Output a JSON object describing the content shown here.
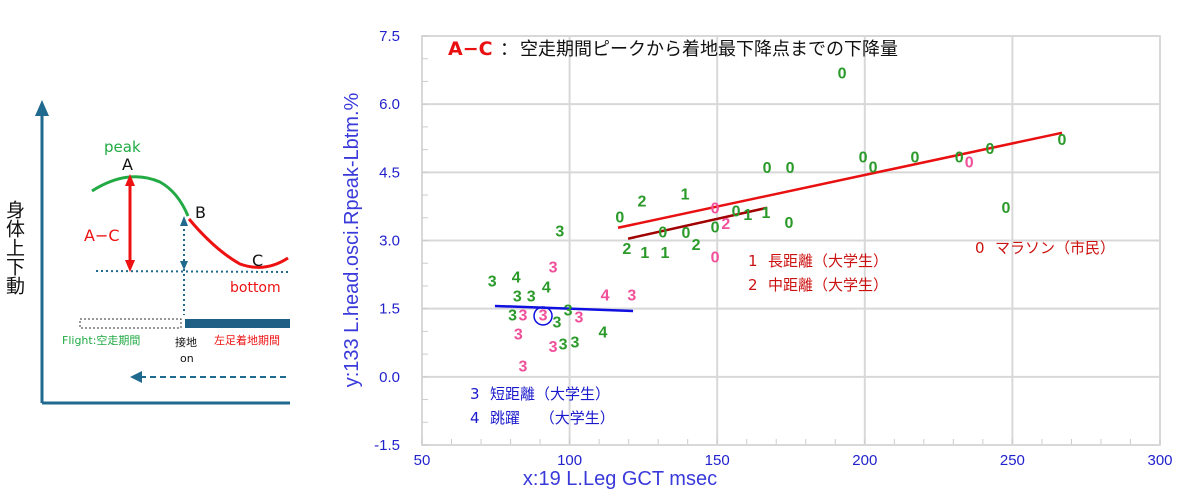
{
  "diagram": {
    "y_axis_label": "身体上下動",
    "peak": "peak",
    "point_a": "A",
    "point_b": "B",
    "point_c": "C",
    "a_minus_c": "A−C",
    "bottom": "bottom",
    "flight": "Flight:空走期間",
    "contact": "接地",
    "contact_on": "on",
    "stance": "左足着地期間"
  },
  "chart_data": {
    "type": "scatter",
    "title_key": "A−C",
    "title_sep": "：",
    "title": "空走期間ピークから着地最下降点までの下降量",
    "xlabel": "x:19 L.Leg GCT msec",
    "ylabel": "y:133 L.head.osci.Rpeak-Lbtm.%",
    "xlim": [
      50,
      300
    ],
    "ylim": [
      -1.5,
      7.5
    ],
    "xticks": [
      "50",
      "100",
      "150",
      "200",
      "250",
      "300"
    ],
    "yticks": [
      "-1.5",
      "0.0",
      "1.5",
      "3.0",
      "4.5",
      "6.0",
      "7.5"
    ],
    "grid": true,
    "colors": {
      "green": "#2a9a2a",
      "pink": "#f0509a",
      "red": "#e81010",
      "darkred": "#a00000",
      "blue": "#1010e0",
      "legend_red": "#cc1111",
      "legend_blue": "#1a1acc"
    },
    "legend": [
      {
        "code": "0",
        "label": "マラソン（市民）"
      },
      {
        "code": "1",
        "label": "長距離（大学生）"
      },
      {
        "code": "2",
        "label": "中距離（大学生）"
      },
      {
        "code": "3",
        "label": "短距離（大学生）"
      },
      {
        "code": "4",
        "label": "跳躍　 （大学生）"
      }
    ],
    "points": [
      {
        "label": "0",
        "color": "green",
        "x": 192.3,
        "y": 6.66
      },
      {
        "label": "0",
        "color": "green",
        "x": 266.8,
        "y": 5.2
      },
      {
        "label": "0",
        "color": "green",
        "x": 199.4,
        "y": 4.82
      },
      {
        "label": "0",
        "color": "green",
        "x": 199.4,
        "y": 4.6
      },
      {
        "label": "0",
        "color": "green",
        "x": 217,
        "y": 4.82
      },
      {
        "label": "0",
        "color": "green",
        "x": 232,
        "y": 4.82
      },
      {
        "label": "0",
        "color": "green",
        "x": 242.4,
        "y": 5.0
      },
      {
        "label": "0",
        "color": "green",
        "x": 247.8,
        "y": 3.7
      },
      {
        "label": "0",
        "color": "green",
        "x": 166.9,
        "y": 4.58
      },
      {
        "label": "0",
        "color": "green",
        "x": 174.7,
        "y": 4.58
      },
      {
        "label": "0",
        "color": "green",
        "x": 117,
        "y": 3.5
      },
      {
        "label": "0",
        "color": "green",
        "x": 131.6,
        "y": 3.17
      },
      {
        "label": "0",
        "color": "green",
        "x": 139.4,
        "y": 3.15
      },
      {
        "label": "0",
        "color": "green",
        "x": 149.3,
        "y": 3.28
      },
      {
        "label": "0",
        "color": "green",
        "x": 156.4,
        "y": 3.63
      },
      {
        "label": "0",
        "color": "green",
        "x": 174.3,
        "y": 3.37
      },
      {
        "label": "0",
        "color": "pink",
        "x": 149.3,
        "y": 2.62
      },
      {
        "label": "0",
        "color": "pink",
        "x": 149.3,
        "y": 3.52
      },
      {
        "label": "0",
        "color": "pink",
        "x": 232,
        "y": 4.71
      },
      {
        "label": "2",
        "color": "green",
        "x": 124.5,
        "y": 3.85
      },
      {
        "label": "2",
        "color": "green",
        "x": 119.4,
        "y": 2.8
      },
      {
        "label": "2",
        "color": "green",
        "x": 141.5,
        "y": 2.89
      },
      {
        "label": "2",
        "color": "pink",
        "x": 152.6,
        "y": 3.37
      },
      {
        "label": "1",
        "color": "green",
        "x": 139.1,
        "y": 4.0
      },
      {
        "label": "1",
        "color": "green",
        "x": 125.5,
        "y": 2.71
      },
      {
        "label": "1",
        "color": "green",
        "x": 132.3,
        "y": 2.71
      },
      {
        "label": "1",
        "color": "green",
        "x": 166.5,
        "y": 3.59
      },
      {
        "label": "1",
        "color": "green",
        "x": 157,
        "y": 3.55
      },
      {
        "label": "3",
        "color": "green",
        "x": 96.7,
        "y": 3.19
      },
      {
        "label": "3",
        "color": "green",
        "x": 73.8,
        "y": 2.09
      },
      {
        "label": "3",
        "color": "green",
        "x": 82.3,
        "y": 1.76
      },
      {
        "label": "3",
        "color": "green",
        "x": 87,
        "y": 1.76
      },
      {
        "label": "3",
        "color": "green",
        "x": 80.7,
        "y": 1.34
      },
      {
        "label": "3",
        "color": "green",
        "x": 95.7,
        "y": 1.19
      },
      {
        "label": "3",
        "color": "green",
        "x": 101.8,
        "y": 0.75
      },
      {
        "label": "3",
        "color": "green",
        "x": 97.8,
        "y": 0.7
      },
      {
        "label": "3",
        "color": "green",
        "x": 98.8,
        "y": 1.45
      },
      {
        "label": "4",
        "color": "green",
        "x": 82.6,
        "y": 2.09
      },
      {
        "label": "4",
        "color": "green",
        "x": 92.1,
        "y": 1.96
      },
      {
        "label": "4",
        "color": "green",
        "x": 111.3,
        "y": 0.97
      },
      {
        "label": "3",
        "color": "pink",
        "x": 94.4,
        "y": 2.4
      },
      {
        "label": "3",
        "color": "pink",
        "x": 84.2,
        "y": 1.34
      },
      {
        "label": "3",
        "color": "pink",
        "x": 91,
        "y": 1.34
      },
      {
        "label": "3",
        "color": "pink",
        "x": 82.3,
        "y": 0.97
      },
      {
        "label": "3",
        "color": "pink",
        "x": 99.1,
        "y": 1.3
      },
      {
        "label": "3",
        "color": "pink",
        "x": 97.1,
        "y": 0.64
      },
      {
        "label": "3",
        "color": "pink",
        "x": 84.2,
        "y": 0.22
      },
      {
        "label": "3",
        "color": "pink",
        "x": 121.1,
        "y": 1.78
      },
      {
        "label": "4",
        "color": "pink",
        "x": 112,
        "y": 1.78
      }
    ],
    "highlight": {
      "x": 91,
      "y": 1.34,
      "color": "blue"
    },
    "trend_lines": [
      {
        "color": "red",
        "x": [
          116.4,
          266.8
        ],
        "y": [
          3.28,
          5.37
        ]
      },
      {
        "color": "darkred",
        "x": [
          119.8,
          166.9
        ],
        "y": [
          3.04,
          3.72
        ]
      },
      {
        "color": "blue",
        "x": [
          74.7,
          121.5
        ],
        "y": [
          1.56,
          1.45
        ]
      }
    ]
  }
}
